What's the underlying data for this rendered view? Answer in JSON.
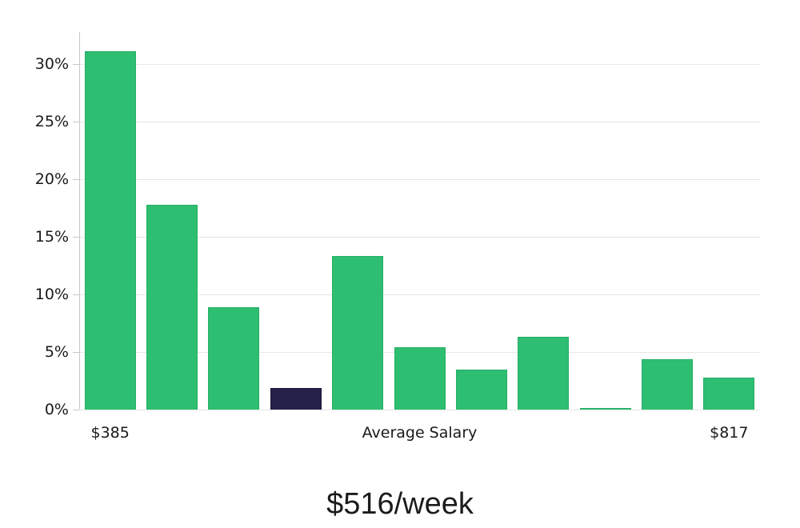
{
  "chart_data": {
    "type": "bar",
    "title": "$516/week",
    "xlabel": "Average Salary",
    "ylabel": "",
    "x_first_tick_label": "$385",
    "x_last_tick_label": "$817",
    "values": [
      31.1,
      17.8,
      8.9,
      1.9,
      13.3,
      5.4,
      3.5,
      6.3,
      0.15,
      4.4,
      2.8
    ],
    "highlighted_bar_index": 3,
    "yticks": [
      0,
      5,
      10,
      15,
      20,
      25,
      30
    ],
    "ytick_labels": [
      "0%",
      "5%",
      "10%",
      "15%",
      "20%",
      "25%",
      "30%"
    ],
    "ylim": [
      0,
      32.8
    ],
    "grid": true,
    "legend": "none",
    "colors": {
      "bar": "#2EBE71",
      "bar_border": "#26AE66",
      "highlight": "#262149",
      "highlight_border": "#1B1838",
      "grid": "#E7E7E7",
      "axis": "#C9C9C9",
      "text": "#1A1A1A"
    }
  }
}
